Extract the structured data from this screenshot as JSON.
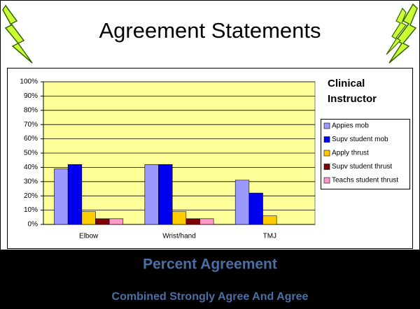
{
  "chart_data": {
    "type": "bar",
    "title": "Agreement Statements",
    "categories": [
      "Elbow",
      "Wrist/hand",
      "TMJ"
    ],
    "series": [
      {
        "name": "Appies mob",
        "color": "#9999ff",
        "values": [
          39,
          42,
          31
        ]
      },
      {
        "name": "Supv student mob",
        "color": "#0000ee",
        "values": [
          42,
          42,
          22
        ]
      },
      {
        "name": "Apply thrust",
        "color": "#ffcc00",
        "values": [
          9,
          9,
          6
        ]
      },
      {
        "name": "Supv student thrust",
        "color": "#800000",
        "values": [
          4,
          4,
          null
        ]
      },
      {
        "name": "Teachs student thrust",
        "color": "#ff99cc",
        "values": [
          4,
          4,
          null
        ]
      }
    ],
    "legend_title": [
      "Clinical",
      "Instructor"
    ],
    "legend": "right",
    "ylim": [
      0,
      100
    ],
    "yticks": [
      {
        "value": 0,
        "label": "0%"
      },
      {
        "value": 10,
        "label": "10%"
      },
      {
        "value": 20,
        "label": "20%"
      },
      {
        "value": 30,
        "label": "30%"
      },
      {
        "value": 40,
        "label": "40%"
      },
      {
        "value": 50,
        "label": "50%"
      },
      {
        "value": 60,
        "label": "60%"
      },
      {
        "value": 70,
        "label": "70%"
      },
      {
        "value": 80,
        "label": "80%"
      },
      {
        "value": 90,
        "label": "90%"
      },
      {
        "value": 100,
        "label": "100%"
      }
    ],
    "grid": true
  },
  "footer": {
    "heading": "Percent Agreement",
    "subheading": "Combined Strongly Agree And Agree"
  }
}
